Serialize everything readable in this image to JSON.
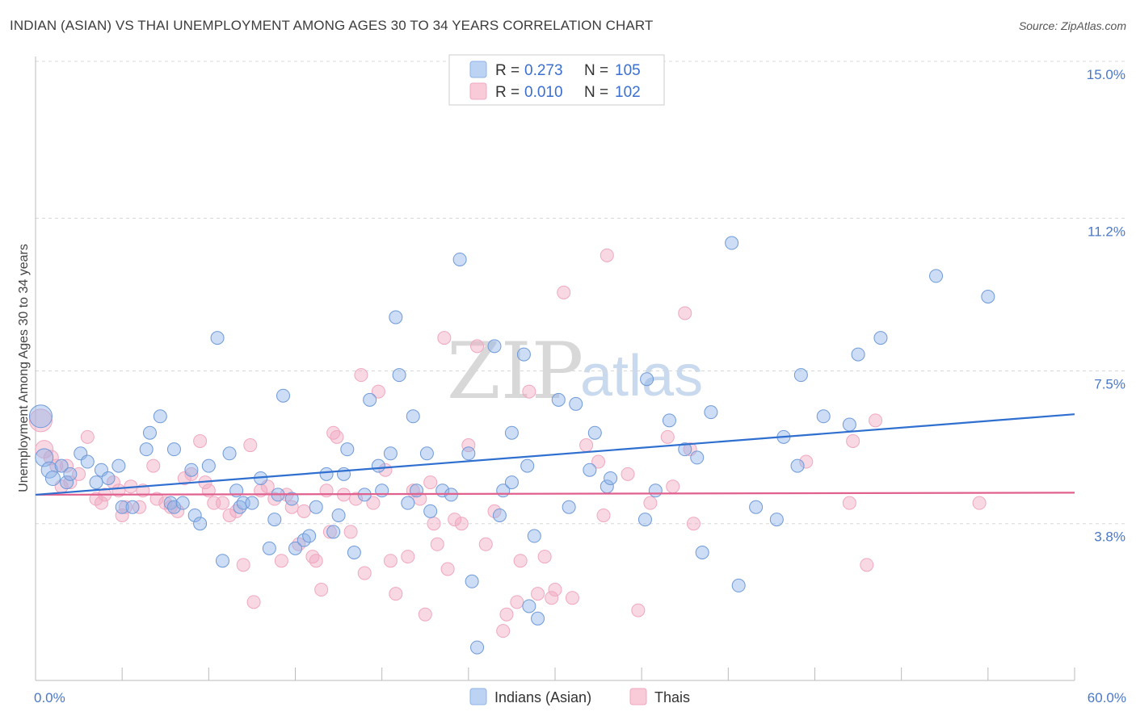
{
  "title": "INDIAN (ASIAN) VS THAI UNEMPLOYMENT AMONG AGES 30 TO 34 YEARS CORRELATION CHART",
  "source": "Source: ZipAtlas.com",
  "watermark": {
    "zip": "ZIP",
    "atlas": "atlas"
  },
  "legend_top": [
    {
      "r_label": "R = ",
      "r_value": "0.273",
      "n_label": "N = ",
      "n_value": "105"
    },
    {
      "r_label": "R = ",
      "r_value": "0.010",
      "n_label": "N = ",
      "n_value": "102"
    }
  ],
  "chart_data": {
    "type": "scatter",
    "title": "INDIAN (ASIAN) VS THAI UNEMPLOYMENT AMONG AGES 30 TO 34 YEARS CORRELATION CHART",
    "xlabel": "",
    "ylabel": "Unemployment Among Ages 30 to 34 years",
    "xlim": [
      0,
      60
    ],
    "ylim": [
      0,
      15.5
    ],
    "x_tick_labels": [
      {
        "value": 0,
        "label": "0.0%"
      },
      {
        "value": 60,
        "label": "60.0%"
      }
    ],
    "y_ticks": [
      {
        "value": 3.8,
        "label": "3.8%"
      },
      {
        "value": 7.5,
        "label": "7.5%"
      },
      {
        "value": 11.2,
        "label": "11.2%"
      },
      {
        "value": 15.0,
        "label": "15.0%"
      }
    ],
    "colors": {
      "indians": "#8fb3e8",
      "indians_line": "#2f6fd0",
      "thais": "#f0a8c0",
      "thais_line": "#e0608e"
    },
    "series": [
      {
        "name": "Indians (Asian)",
        "r": 0.273,
        "n": 105,
        "trend": {
          "x": [
            0,
            60
          ],
          "y": [
            4.5,
            6.45
          ]
        },
        "points": [
          [
            0.3,
            6.4,
            14
          ],
          [
            0.5,
            5.4,
            11
          ],
          [
            0.8,
            5.1,
            10
          ],
          [
            1.0,
            4.9,
            9
          ],
          [
            1.5,
            5.2,
            8
          ],
          [
            1.8,
            4.8,
            8
          ],
          [
            2.0,
            5.0,
            8
          ],
          [
            2.6,
            5.5,
            8
          ],
          [
            3.0,
            5.3,
            8
          ],
          [
            3.5,
            4.8,
            8
          ],
          [
            3.8,
            5.1,
            8
          ],
          [
            4.2,
            4.9,
            8
          ],
          [
            4.8,
            5.2,
            8
          ],
          [
            5.0,
            4.2,
            8
          ],
          [
            5.6,
            4.2,
            8
          ],
          [
            6.4,
            5.6,
            8
          ],
          [
            6.6,
            6.0,
            8
          ],
          [
            7.2,
            6.4,
            8
          ],
          [
            7.8,
            4.3,
            8
          ],
          [
            8.0,
            4.2,
            8
          ],
          [
            8.0,
            5.6,
            8
          ],
          [
            8.5,
            4.3,
            8
          ],
          [
            9.0,
            5.1,
            8
          ],
          [
            9.2,
            4.0,
            8
          ],
          [
            9.5,
            3.8,
            8
          ],
          [
            10.0,
            5.2,
            8
          ],
          [
            10.5,
            8.3,
            8
          ],
          [
            10.8,
            2.9,
            8
          ],
          [
            11.2,
            5.5,
            8
          ],
          [
            11.6,
            4.6,
            8
          ],
          [
            11.8,
            4.2,
            8
          ],
          [
            12.0,
            4.3,
            8
          ],
          [
            12.5,
            4.3,
            8
          ],
          [
            13.0,
            4.9,
            8
          ],
          [
            13.5,
            3.2,
            8
          ],
          [
            13.8,
            3.9,
            8
          ],
          [
            14.0,
            4.5,
            8
          ],
          [
            14.3,
            6.9,
            8
          ],
          [
            14.8,
            4.4,
            8
          ],
          [
            15.0,
            3.2,
            8
          ],
          [
            15.5,
            3.4,
            8
          ],
          [
            15.8,
            3.5,
            8
          ],
          [
            16.2,
            4.2,
            8
          ],
          [
            16.8,
            5.0,
            8
          ],
          [
            17.2,
            3.6,
            8
          ],
          [
            17.5,
            4.0,
            8
          ],
          [
            17.8,
            5.0,
            8
          ],
          [
            18.0,
            5.6,
            8
          ],
          [
            18.4,
            3.1,
            8
          ],
          [
            19.0,
            4.5,
            8
          ],
          [
            19.3,
            6.8,
            8
          ],
          [
            19.8,
            5.2,
            8
          ],
          [
            20.0,
            4.6,
            8
          ],
          [
            20.5,
            5.5,
            8
          ],
          [
            20.8,
            8.8,
            8
          ],
          [
            21.0,
            7.4,
            8
          ],
          [
            21.5,
            4.3,
            8
          ],
          [
            21.8,
            6.4,
            8
          ],
          [
            22.0,
            4.6,
            8
          ],
          [
            22.6,
            5.5,
            8
          ],
          [
            22.8,
            4.1,
            8
          ],
          [
            23.5,
            4.6,
            8
          ],
          [
            24.0,
            4.5,
            8
          ],
          [
            24.5,
            10.2,
            8
          ],
          [
            25.0,
            5.5,
            8
          ],
          [
            25.2,
            2.4,
            8
          ],
          [
            25.5,
            0.8,
            8
          ],
          [
            26.5,
            8.1,
            8
          ],
          [
            26.8,
            4.0,
            8
          ],
          [
            27.0,
            4.6,
            8
          ],
          [
            27.5,
            4.8,
            8
          ],
          [
            27.5,
            6.0,
            8
          ],
          [
            28.2,
            7.9,
            8
          ],
          [
            28.4,
            5.2,
            8
          ],
          [
            28.5,
            1.8,
            8
          ],
          [
            28.8,
            3.5,
            8
          ],
          [
            29.0,
            1.5,
            8
          ],
          [
            30.2,
            6.8,
            8
          ],
          [
            30.8,
            4.2,
            8
          ],
          [
            31.2,
            6.7,
            8
          ],
          [
            32.0,
            5.1,
            8
          ],
          [
            32.3,
            6.0,
            8
          ],
          [
            33.0,
            4.7,
            8
          ],
          [
            33.2,
            4.9,
            8
          ],
          [
            35.2,
            3.9,
            8
          ],
          [
            35.3,
            7.3,
            8
          ],
          [
            35.8,
            4.6,
            8
          ],
          [
            36.6,
            6.3,
            8
          ],
          [
            37.5,
            5.6,
            8
          ],
          [
            38.2,
            5.4,
            8
          ],
          [
            38.5,
            3.1,
            8
          ],
          [
            39.0,
            6.5,
            8
          ],
          [
            40.2,
            10.6,
            8
          ],
          [
            40.6,
            2.3,
            8
          ],
          [
            41.6,
            4.2,
            8
          ],
          [
            42.8,
            3.9,
            8
          ],
          [
            43.2,
            5.9,
            8
          ],
          [
            44.0,
            5.2,
            8
          ],
          [
            44.2,
            7.4,
            8
          ],
          [
            45.5,
            6.4,
            8
          ],
          [
            47.0,
            6.2,
            8
          ],
          [
            47.5,
            7.9,
            8
          ],
          [
            48.8,
            8.3,
            8
          ],
          [
            52.0,
            9.8,
            8
          ],
          [
            55.0,
            9.3,
            8
          ]
        ]
      },
      {
        "name": "Thais",
        "r": 0.01,
        "n": 102,
        "trend": {
          "x": [
            0,
            60
          ],
          "y": [
            4.5,
            4.55
          ]
        },
        "points": [
          [
            0.3,
            6.3,
            14
          ],
          [
            0.5,
            5.6,
            11
          ],
          [
            0.9,
            5.4,
            9
          ],
          [
            1.2,
            5.2,
            8
          ],
          [
            1.5,
            4.7,
            8
          ],
          [
            1.8,
            5.2,
            8
          ],
          [
            2.0,
            4.8,
            8
          ],
          [
            2.5,
            5.0,
            8
          ],
          [
            3.0,
            5.9,
            8
          ],
          [
            3.5,
            4.4,
            8
          ],
          [
            3.8,
            4.3,
            8
          ],
          [
            4.0,
            4.5,
            8
          ],
          [
            4.5,
            4.8,
            8
          ],
          [
            4.8,
            4.6,
            8
          ],
          [
            5.0,
            4.0,
            8
          ],
          [
            5.2,
            4.2,
            8
          ],
          [
            5.5,
            4.7,
            8
          ],
          [
            6.0,
            4.2,
            8
          ],
          [
            6.2,
            4.6,
            8
          ],
          [
            6.8,
            5.2,
            8
          ],
          [
            7.0,
            4.4,
            8
          ],
          [
            7.5,
            4.3,
            8
          ],
          [
            7.8,
            4.2,
            8
          ],
          [
            8.2,
            4.1,
            8
          ],
          [
            8.6,
            4.9,
            8
          ],
          [
            9.0,
            5.0,
            8
          ],
          [
            9.5,
            5.8,
            8
          ],
          [
            9.8,
            4.8,
            8
          ],
          [
            10.0,
            4.6,
            8
          ],
          [
            10.3,
            4.3,
            8
          ],
          [
            10.8,
            4.3,
            8
          ],
          [
            11.2,
            4.0,
            8
          ],
          [
            11.6,
            4.1,
            8
          ],
          [
            12.0,
            2.8,
            8
          ],
          [
            12.4,
            5.7,
            8
          ],
          [
            12.6,
            1.9,
            8
          ],
          [
            13.0,
            4.6,
            8
          ],
          [
            13.4,
            4.7,
            8
          ],
          [
            13.8,
            4.4,
            8
          ],
          [
            14.2,
            2.9,
            8
          ],
          [
            14.5,
            4.5,
            8
          ],
          [
            14.8,
            4.2,
            8
          ],
          [
            15.2,
            3.3,
            8
          ],
          [
            15.5,
            4.1,
            8
          ],
          [
            16.0,
            3.0,
            8
          ],
          [
            16.2,
            2.9,
            8
          ],
          [
            16.5,
            2.2,
            8
          ],
          [
            16.8,
            4.6,
            8
          ],
          [
            17.0,
            3.6,
            8
          ],
          [
            17.2,
            6.0,
            8
          ],
          [
            17.4,
            5.9,
            8
          ],
          [
            17.8,
            4.5,
            8
          ],
          [
            18.2,
            3.6,
            8
          ],
          [
            18.5,
            4.4,
            8
          ],
          [
            18.8,
            7.4,
            8
          ],
          [
            19.0,
            2.6,
            8
          ],
          [
            19.5,
            4.3,
            8
          ],
          [
            19.8,
            7.0,
            8
          ],
          [
            20.2,
            5.1,
            8
          ],
          [
            20.5,
            2.9,
            8
          ],
          [
            20.8,
            2.1,
            8
          ],
          [
            21.5,
            3.0,
            8
          ],
          [
            21.8,
            4.6,
            8
          ],
          [
            22.2,
            4.4,
            8
          ],
          [
            22.5,
            1.6,
            8
          ],
          [
            22.8,
            4.8,
            8
          ],
          [
            23.0,
            3.8,
            8
          ],
          [
            23.2,
            3.3,
            8
          ],
          [
            23.6,
            8.3,
            8
          ],
          [
            23.8,
            2.7,
            8
          ],
          [
            24.2,
            3.9,
            8
          ],
          [
            24.6,
            3.8,
            8
          ],
          [
            25.0,
            5.7,
            8
          ],
          [
            25.5,
            8.1,
            8
          ],
          [
            26.0,
            3.3,
            8
          ],
          [
            26.5,
            4.1,
            8
          ],
          [
            27.0,
            1.2,
            8
          ],
          [
            27.2,
            1.6,
            8
          ],
          [
            27.8,
            1.9,
            8
          ],
          [
            28.0,
            2.9,
            8
          ],
          [
            28.5,
            7.0,
            8
          ],
          [
            29.0,
            2.1,
            8
          ],
          [
            29.4,
            3.0,
            8
          ],
          [
            29.8,
            2.0,
            8
          ],
          [
            30.0,
            2.2,
            8
          ],
          [
            30.5,
            9.4,
            8
          ],
          [
            31.0,
            2.0,
            8
          ],
          [
            31.8,
            5.7,
            8
          ],
          [
            32.5,
            5.3,
            8
          ],
          [
            32.8,
            4.0,
            8
          ],
          [
            33.0,
            10.3,
            8
          ],
          [
            34.2,
            5.0,
            8
          ],
          [
            34.8,
            1.7,
            8
          ],
          [
            35.5,
            4.3,
            8
          ],
          [
            36.5,
            5.9,
            8
          ],
          [
            36.8,
            4.7,
            8
          ],
          [
            37.5,
            8.9,
            8
          ],
          [
            37.8,
            5.6,
            8
          ],
          [
            38.0,
            3.8,
            8
          ],
          [
            44.5,
            5.3,
            8
          ],
          [
            47.0,
            4.3,
            8
          ],
          [
            47.2,
            5.8,
            8
          ],
          [
            48.0,
            2.8,
            8
          ],
          [
            48.5,
            6.3,
            8
          ],
          [
            54.5,
            4.3,
            8
          ]
        ]
      }
    ]
  }
}
